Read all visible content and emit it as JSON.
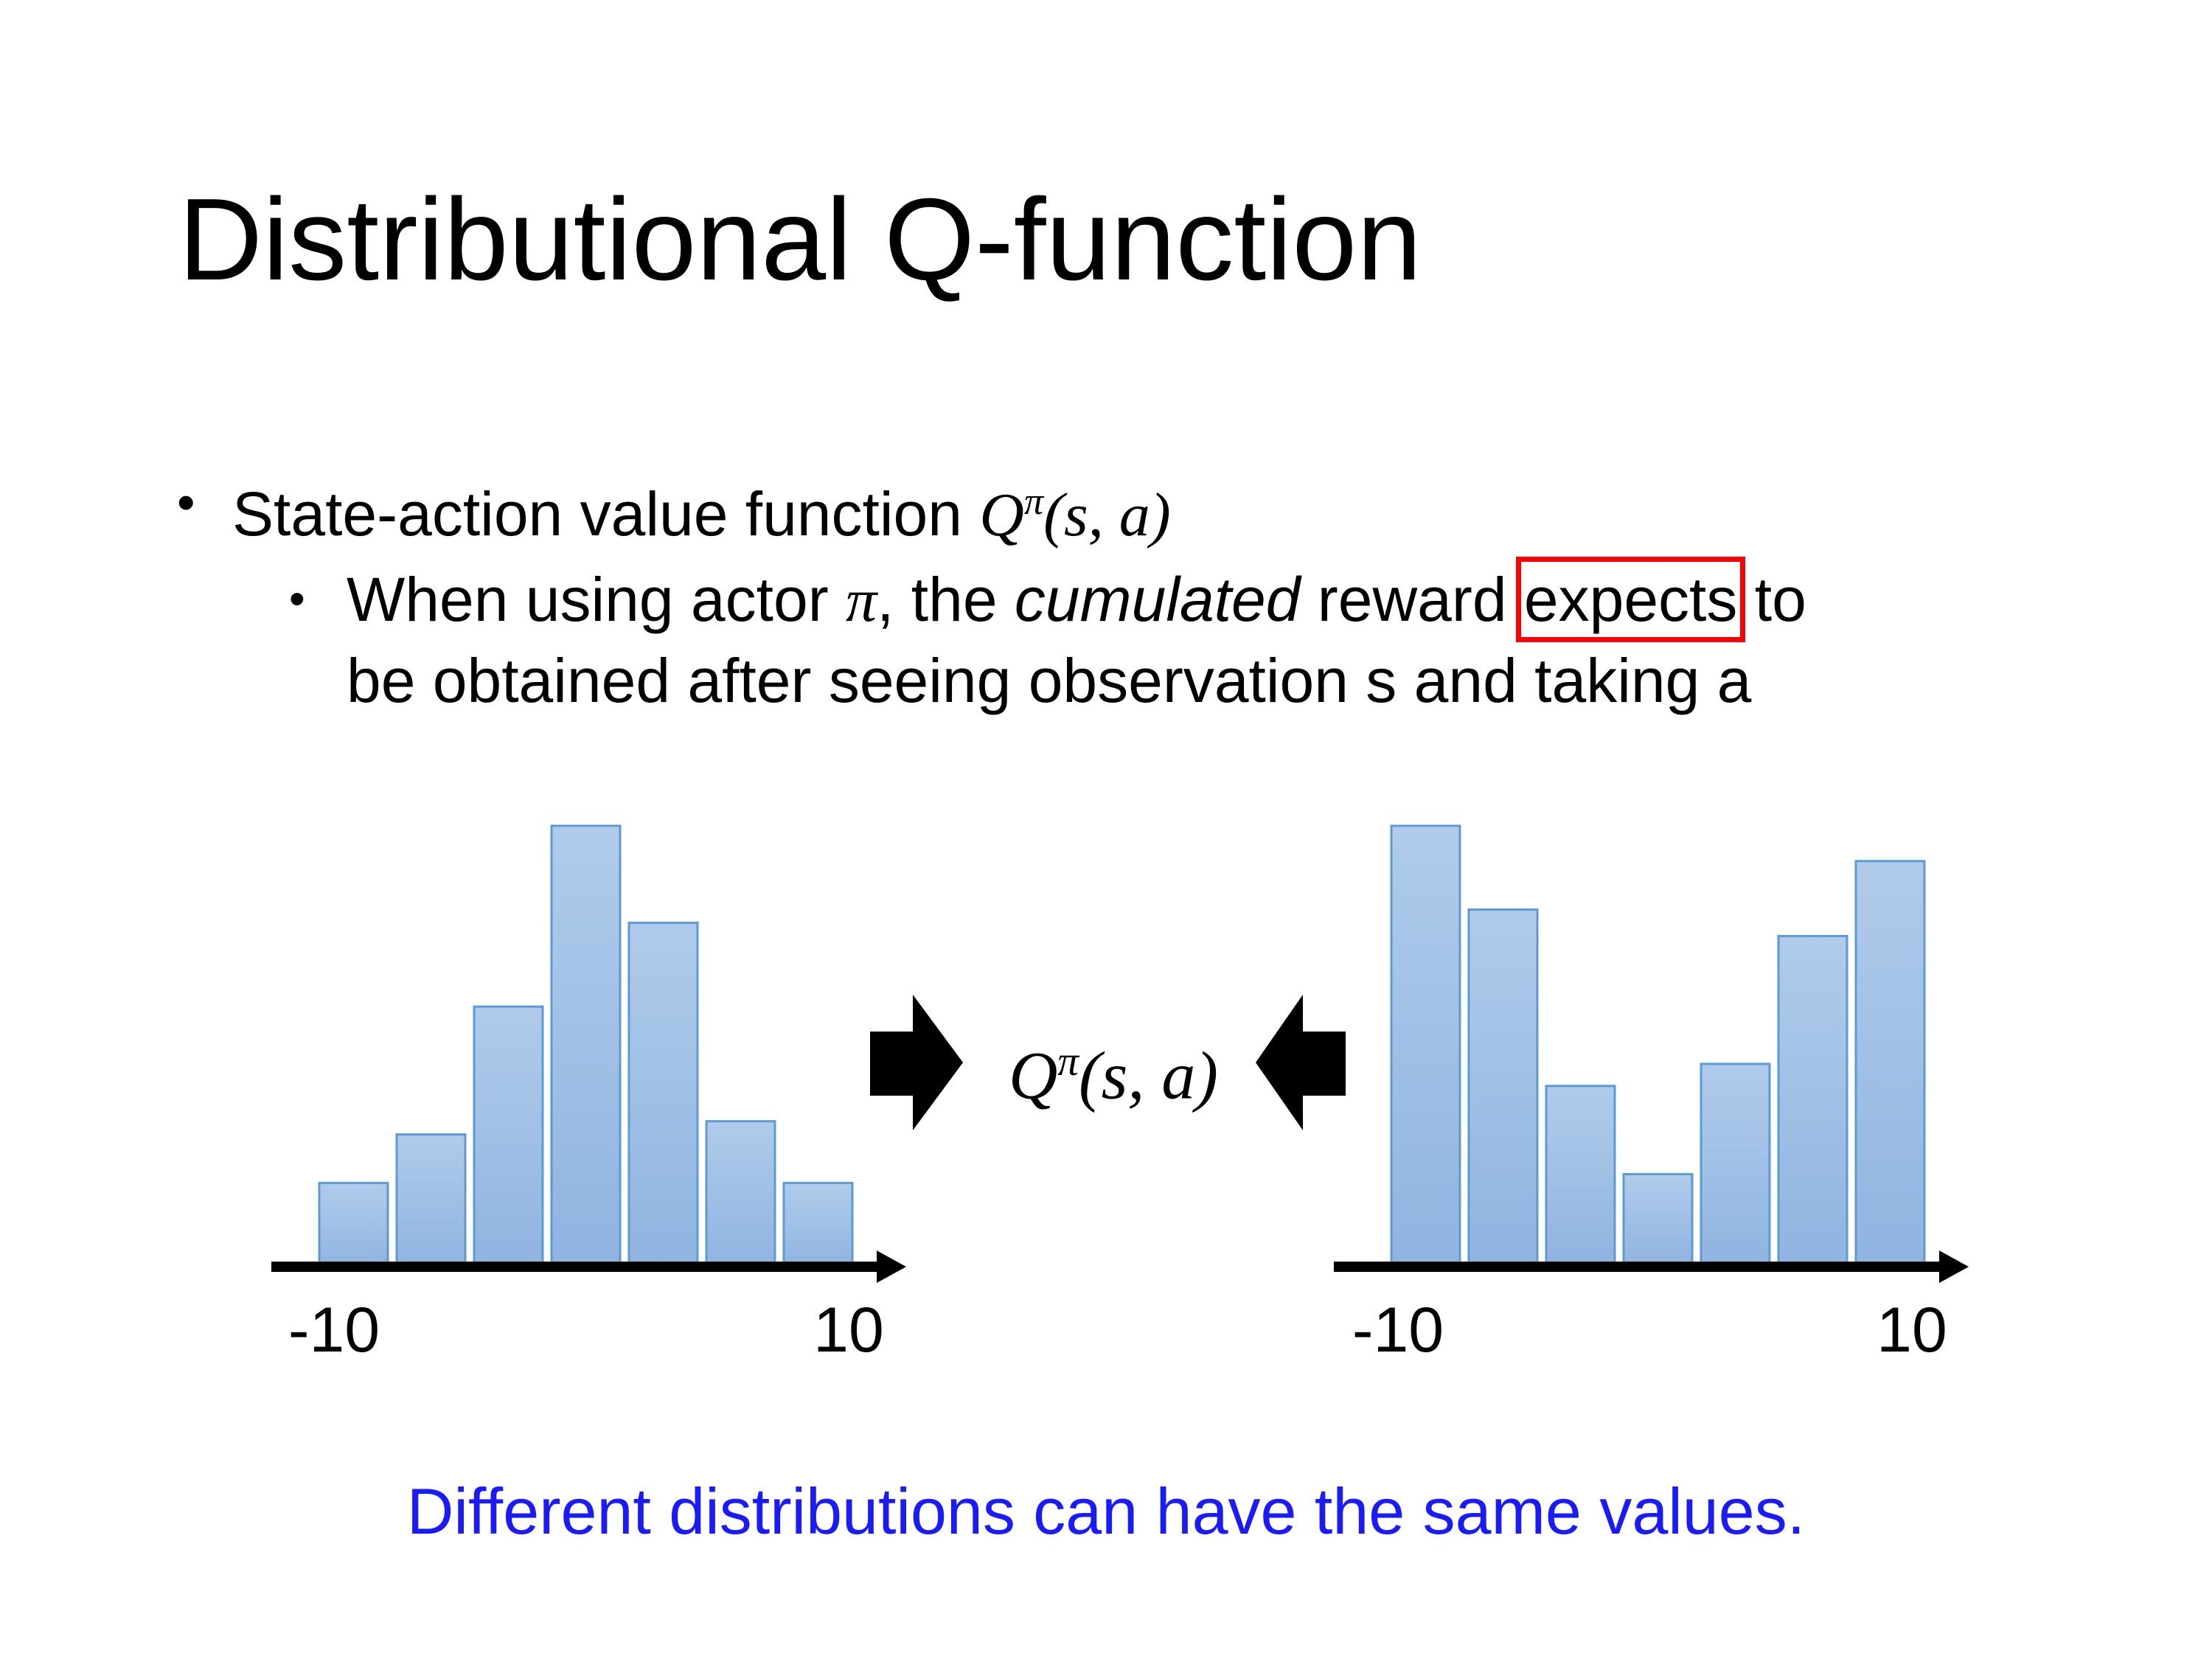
{
  "slide": {
    "title": "Distributional Q-function",
    "bullet1": {
      "text": "State-action value function ",
      "math": {
        "symbol": "Q",
        "superscript": "π",
        "args": "(s, a)"
      }
    },
    "bullet2": {
      "line1_prefix": "When using actor ",
      "pi": "π",
      "line1_mid": ", the ",
      "emphasis": "cumulated",
      "line1_after": " reward ",
      "highlighted": "expects",
      "line1_suffix": " to",
      "line2": "be obtained after seeing observation s and taking a"
    },
    "center_math": {
      "symbol": "Q",
      "superscript": "π",
      "args": "(s, a)"
    },
    "note": "Different distributions can have the same values.",
    "colors": {
      "note": "#1a1aff",
      "highlight_box": "#ff0000",
      "bar_fill_top": "#b0cbea",
      "bar_fill_bottom": "#8fb4e0",
      "bar_stroke": "#5b9bd5",
      "arrow": "#000000"
    },
    "icons": [
      "arrow-right-icon",
      "arrow-left-icon"
    ]
  },
  "chart_data": [
    {
      "type": "bar",
      "xlim": [
        -10,
        10
      ],
      "xticks": [
        "-10",
        "10"
      ],
      "bins": 7,
      "values": [
        19,
        30,
        59,
        100,
        78,
        33,
        19
      ],
      "grid": false
    },
    {
      "type": "bar",
      "xlim": [
        -10,
        10
      ],
      "xticks": [
        "-10",
        "10"
      ],
      "bins": 7,
      "values": [
        100,
        81,
        41,
        21,
        46,
        75,
        92
      ],
      "grid": false
    }
  ]
}
